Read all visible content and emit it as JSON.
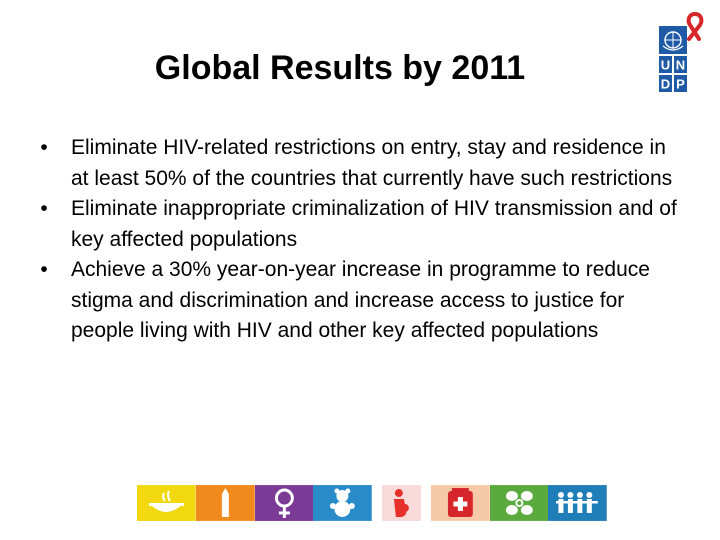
{
  "slide": {
    "title": "Global Results by 2011",
    "bullets": [
      {
        "marker": "•",
        "text": "Eliminate HIV-related restrictions on entry, stay and residence in at least 50% of the countries that currently have such restrictions"
      },
      {
        "marker": "•",
        "text": "Eliminate inappropriate criminalization of HIV transmission and of key affected populations"
      },
      {
        "marker": "•",
        "text": "Achieve a 30% year-on-year increase in programme to reduce stigma and discrimination and increase access to justice for people living with HIV and other key affected populations"
      }
    ]
  },
  "logo": {
    "letters": [
      "U",
      "N",
      "D",
      "P"
    ],
    "colors": {
      "primary": "#1F5AA6",
      "ribbon": "#D7262B"
    }
  },
  "mdg_icons": [
    {
      "name": "poverty-hunger-icon",
      "color": "#F2D80E"
    },
    {
      "name": "education-icon",
      "color": "#F08A1C"
    },
    {
      "name": "gender-equality-icon",
      "color": "#7B3A96"
    },
    {
      "name": "child-health-icon",
      "color": "#2A8BC9"
    },
    {
      "name": "maternal-health-icon",
      "color": "#E8302A"
    },
    {
      "name": "hiv-malaria-icon",
      "color": "#D7262B"
    },
    {
      "name": "environment-icon",
      "color": "#5BAA3E"
    },
    {
      "name": "partnership-icon",
      "color": "#1F7DB8"
    }
  ]
}
